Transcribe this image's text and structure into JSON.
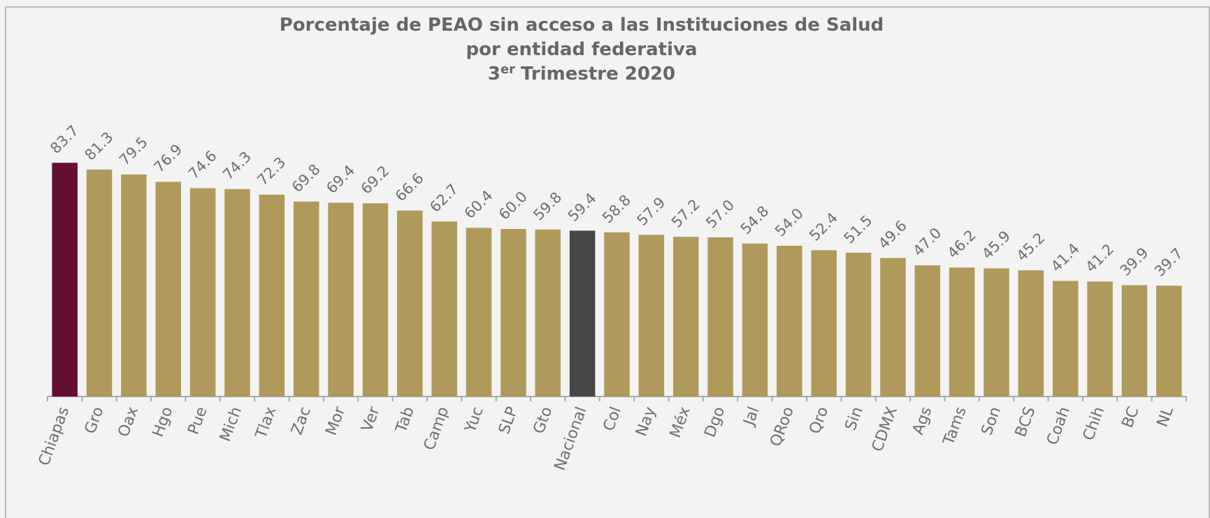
{
  "chart_data": {
    "type": "bar",
    "title": [
      "Porcentaje de PEAO sin acceso a las Instituciones de Salud",
      "por entidad federativa"
    ],
    "subtitle": {
      "number": "3",
      "superscript": "er",
      "text": "Trimestre 2020"
    },
    "categories": [
      "Chiapas",
      "Gro",
      "Oax",
      "Hgo",
      "Pue",
      "Mich",
      "Tlax",
      "Zac",
      "Mor",
      "Ver",
      "Tab",
      "Camp",
      "Yuc",
      "SLP",
      "Gto",
      "Nacional",
      "Col",
      "Nay",
      "Méx",
      "Dgo",
      "Jal",
      "QRoo",
      "Qro",
      "Sin",
      "CDMX",
      "Ags",
      "Tams",
      "Son",
      "BCS",
      "Coah",
      "Chih",
      "BC",
      "NL"
    ],
    "values": [
      83.7,
      81.3,
      79.5,
      76.9,
      74.6,
      74.3,
      72.3,
      69.8,
      69.4,
      69.2,
      66.6,
      62.7,
      60.4,
      60.0,
      59.8,
      59.4,
      58.8,
      57.9,
      57.2,
      57.0,
      54.8,
      54.0,
      52.4,
      51.5,
      49.6,
      47.0,
      46.2,
      45.9,
      45.2,
      41.4,
      41.2,
      39.9,
      39.7
    ],
    "value_labels": [
      "83.7",
      "81.3",
      "79.5",
      "76.9",
      "74.6",
      "74.3",
      "72.3",
      "69.8",
      "69.4",
      "69.2",
      "66.6",
      "62.7",
      "60.4",
      "60.0",
      "59.8",
      "59.4",
      "58.8",
      "57.9",
      "57.2",
      "57.0",
      "54.8",
      "54.0",
      "52.4",
      "51.5",
      "49.6",
      "47.0",
      "46.2",
      "45.9",
      "45.2",
      "41.4",
      "41.2",
      "39.9",
      "39.7"
    ],
    "colors": [
      "#640f31",
      "#b09a5b",
      "#b09a5b",
      "#b09a5b",
      "#b09a5b",
      "#b09a5b",
      "#b09a5b",
      "#b09a5b",
      "#b09a5b",
      "#b09a5b",
      "#b09a5b",
      "#b09a5b",
      "#b09a5b",
      "#b09a5b",
      "#b09a5b",
      "#474747",
      "#b09a5b",
      "#b09a5b",
      "#b09a5b",
      "#b09a5b",
      "#b09a5b",
      "#b09a5b",
      "#b09a5b",
      "#b09a5b",
      "#b09a5b",
      "#b09a5b",
      "#b09a5b",
      "#b09a5b",
      "#b09a5b",
      "#b09a5b",
      "#b09a5b",
      "#b09a5b",
      "#b09a5b"
    ],
    "ylim": [
      0,
      100
    ]
  }
}
